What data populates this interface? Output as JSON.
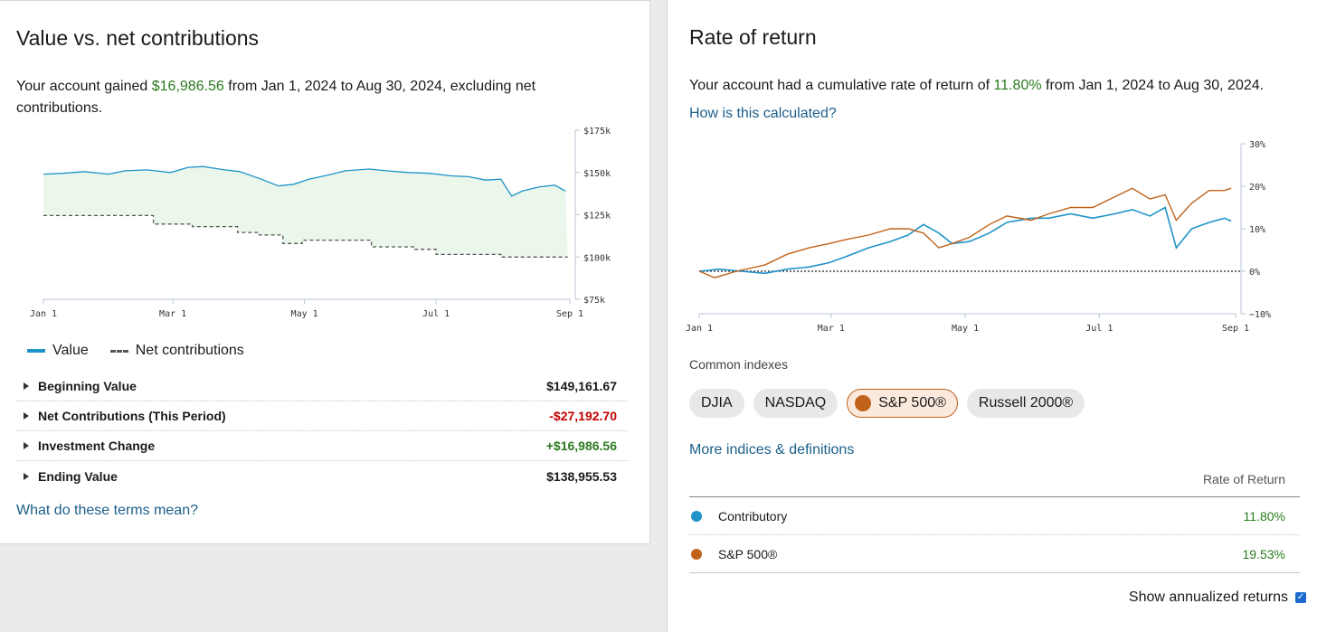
{
  "left": {
    "title": "Value vs. net contributions",
    "summary": {
      "pre": "Your account gained ",
      "amount": "$16,986.56",
      "post": " from Jan 1, 2024 to Aug 30, 2024, excluding net contributions."
    },
    "legend": {
      "value": "Value",
      "net": "Net contributions"
    },
    "rows": [
      {
        "label": "Beginning Value",
        "value": "$149,161.67",
        "tone": "neutral"
      },
      {
        "label": "Net Contributions (This Period)",
        "value": "-$27,192.70",
        "tone": "negative"
      },
      {
        "label": "Investment Change",
        "value": "+$16,986.56",
        "tone": "positive"
      },
      {
        "label": "Ending Value",
        "value": "$138,955.53",
        "tone": "neutral"
      }
    ],
    "terms_link": "What do these terms mean?"
  },
  "right": {
    "title": "Rate of return",
    "summary": {
      "pre": "Your account had a cumulative rate of return of ",
      "pct": "11.80%",
      "post": " from Jan 1, 2024 to Aug 30, 2024."
    },
    "calc_link": "How is this calculated?",
    "common_indexes_label": "Common indexes",
    "chips": [
      {
        "label": "DJIA",
        "active": false
      },
      {
        "label": "NASDAQ",
        "active": false
      },
      {
        "label": "S&P 500®",
        "active": true
      },
      {
        "label": "Russell 2000®",
        "active": false
      }
    ],
    "more_link": "More indices & definitions",
    "table_header": "Rate of Return",
    "table_rows": [
      {
        "label": "Contributory",
        "value": "11.80%",
        "color": "#1e93c9"
      },
      {
        "label": "S&P 500®",
        "value": "19.53%",
        "color": "#c0621a"
      }
    ],
    "show_annualized": "Show annualized returns"
  },
  "colors": {
    "value_line": "#1e93c9",
    "value_fill": "#eaf7ea",
    "net_line": "#555555",
    "sp500": "#c0621a",
    "positive": "#2b7a1f",
    "negative": "#c00000"
  },
  "chart_data": [
    {
      "type": "area",
      "x_ticks": [
        "Jan 1",
        "Mar 1",
        "May 1",
        "Jul 1",
        "Sep 1"
      ],
      "y_ticks": [
        "$75k",
        "$100k",
        "$125k",
        "$150k",
        "$175k"
      ],
      "ylim": [
        75000,
        175000
      ],
      "x_domain": [
        "2024-01-01",
        "2024-09-01"
      ],
      "series": [
        {
          "name": "Value",
          "points": [
            [
              "2024-01-01",
              149000
            ],
            [
              "2024-01-10",
              149500
            ],
            [
              "2024-01-20",
              150500
            ],
            [
              "2024-01-31",
              149000
            ],
            [
              "2024-02-08",
              151000
            ],
            [
              "2024-02-18",
              151500
            ],
            [
              "2024-02-29",
              150000
            ],
            [
              "2024-03-08",
              153000
            ],
            [
              "2024-03-15",
              153500
            ],
            [
              "2024-03-25",
              151500
            ],
            [
              "2024-04-01",
              150500
            ],
            [
              "2024-04-10",
              146500
            ],
            [
              "2024-04-19",
              142000
            ],
            [
              "2024-04-26",
              143000
            ],
            [
              "2024-05-03",
              146000
            ],
            [
              "2024-05-12",
              148500
            ],
            [
              "2024-05-20",
              151000
            ],
            [
              "2024-05-31",
              152000
            ],
            [
              "2024-06-08",
              151000
            ],
            [
              "2024-06-18",
              150000
            ],
            [
              "2024-06-28",
              149500
            ],
            [
              "2024-07-08",
              148000
            ],
            [
              "2024-07-16",
              147500
            ],
            [
              "2024-07-24",
              145500
            ],
            [
              "2024-07-31",
              146000
            ],
            [
              "2024-08-05",
              136000
            ],
            [
              "2024-08-10",
              139000
            ],
            [
              "2024-08-18",
              141500
            ],
            [
              "2024-08-25",
              142500
            ],
            [
              "2024-08-30",
              139000
            ]
          ]
        },
        {
          "name": "Net contributions",
          "points": [
            [
              "2024-01-01",
              124500
            ],
            [
              "2024-02-21",
              124500
            ],
            [
              "2024-02-21",
              119500
            ],
            [
              "2024-03-10",
              119500
            ],
            [
              "2024-03-10",
              118000
            ],
            [
              "2024-03-31",
              118000
            ],
            [
              "2024-03-31",
              114500
            ],
            [
              "2024-04-10",
              114500
            ],
            [
              "2024-04-10",
              113000
            ],
            [
              "2024-04-21",
              113000
            ],
            [
              "2024-04-21",
              108000
            ],
            [
              "2024-04-30",
              108000
            ],
            [
              "2024-04-30",
              110000
            ],
            [
              "2024-06-01",
              110000
            ],
            [
              "2024-06-01",
              106000
            ],
            [
              "2024-06-21",
              106000
            ],
            [
              "2024-06-21",
              104500
            ],
            [
              "2024-07-01",
              104500
            ],
            [
              "2024-07-01",
              101500
            ],
            [
              "2024-07-31",
              101500
            ],
            [
              "2024-07-31",
              100000
            ],
            [
              "2024-08-31",
              100000
            ]
          ]
        }
      ]
    },
    {
      "type": "line",
      "x_ticks": [
        "Jan 1",
        "Mar 1",
        "May 1",
        "Jul 1",
        "Sep 1"
      ],
      "y_ticks": [
        "−10%",
        "0%",
        "10%",
        "20%",
        "30%"
      ],
      "ylim": [
        -10,
        30
      ],
      "x_domain": [
        "2024-01-01",
        "2024-09-01"
      ],
      "series": [
        {
          "name": "Contributory",
          "points": [
            [
              "2024-01-01",
              0
            ],
            [
              "2024-01-10",
              0.5
            ],
            [
              "2024-01-20",
              0
            ],
            [
              "2024-01-31",
              -0.5
            ],
            [
              "2024-02-10",
              0.5
            ],
            [
              "2024-02-20",
              1
            ],
            [
              "2024-02-29",
              2
            ],
            [
              "2024-03-08",
              3.5
            ],
            [
              "2024-03-18",
              5.5
            ],
            [
              "2024-03-28",
              7
            ],
            [
              "2024-04-05",
              8.5
            ],
            [
              "2024-04-12",
              11
            ],
            [
              "2024-04-19",
              9
            ],
            [
              "2024-04-25",
              6.5
            ],
            [
              "2024-05-03",
              7
            ],
            [
              "2024-05-12",
              9
            ],
            [
              "2024-05-20",
              11.5
            ],
            [
              "2024-05-31",
              12.5
            ],
            [
              "2024-06-08",
              12.5
            ],
            [
              "2024-06-18",
              13.5
            ],
            [
              "2024-06-28",
              12.5
            ],
            [
              "2024-07-08",
              13.5
            ],
            [
              "2024-07-16",
              14.5
            ],
            [
              "2024-07-24",
              13
            ],
            [
              "2024-07-31",
              15
            ],
            [
              "2024-08-05",
              5.5
            ],
            [
              "2024-08-12",
              10
            ],
            [
              "2024-08-20",
              11.5
            ],
            [
              "2024-08-27",
              12.5
            ],
            [
              "2024-08-30",
              11.8
            ]
          ]
        },
        {
          "name": "S&P 500®",
          "points": [
            [
              "2024-01-01",
              0
            ],
            [
              "2024-01-08",
              -1.5
            ],
            [
              "2024-01-18",
              0
            ],
            [
              "2024-01-31",
              1.5
            ],
            [
              "2024-02-10",
              4
            ],
            [
              "2024-02-20",
              5.5
            ],
            [
              "2024-02-29",
              6.5
            ],
            [
              "2024-03-08",
              7.5
            ],
            [
              "2024-03-18",
              8.5
            ],
            [
              "2024-03-28",
              10
            ],
            [
              "2024-04-05",
              10
            ],
            [
              "2024-04-12",
              9
            ],
            [
              "2024-04-19",
              5.5
            ],
            [
              "2024-04-25",
              6.5
            ],
            [
              "2024-05-03",
              8
            ],
            [
              "2024-05-12",
              11
            ],
            [
              "2024-05-20",
              13
            ],
            [
              "2024-05-31",
              12
            ],
            [
              "2024-06-08",
              13.5
            ],
            [
              "2024-06-18",
              15
            ],
            [
              "2024-06-28",
              15
            ],
            [
              "2024-07-08",
              17.5
            ],
            [
              "2024-07-16",
              19.5
            ],
            [
              "2024-07-24",
              17
            ],
            [
              "2024-07-31",
              18
            ],
            [
              "2024-08-05",
              12
            ],
            [
              "2024-08-12",
              16
            ],
            [
              "2024-08-20",
              19
            ],
            [
              "2024-08-27",
              19
            ],
            [
              "2024-08-30",
              19.53
            ]
          ]
        }
      ]
    }
  ]
}
